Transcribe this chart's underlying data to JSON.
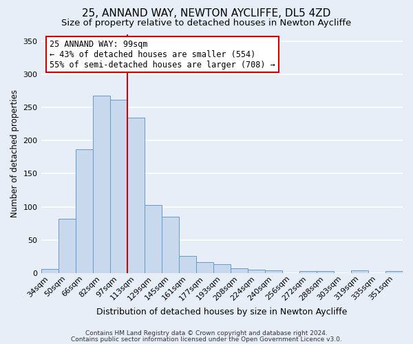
{
  "title": "25, ANNAND WAY, NEWTON AYCLIFFE, DL5 4ZD",
  "subtitle": "Size of property relative to detached houses in Newton Aycliffe",
  "xlabel": "Distribution of detached houses by size in Newton Aycliffe",
  "ylabel": "Number of detached properties",
  "bar_labels": [
    "34sqm",
    "50sqm",
    "66sqm",
    "82sqm",
    "97sqm",
    "113sqm",
    "129sqm",
    "145sqm",
    "161sqm",
    "177sqm",
    "193sqm",
    "208sqm",
    "224sqm",
    "240sqm",
    "256sqm",
    "272sqm",
    "288sqm",
    "303sqm",
    "319sqm",
    "335sqm",
    "351sqm"
  ],
  "bar_values": [
    6,
    82,
    187,
    268,
    261,
    234,
    103,
    85,
    26,
    16,
    13,
    7,
    5,
    4,
    0,
    3,
    3,
    0,
    4,
    0,
    3
  ],
  "bar_color": "#c9d9ed",
  "bar_edge_color": "#6699cc",
  "vline_color": "#cc0000",
  "annotation_title": "25 ANNAND WAY: 99sqm",
  "annotation_line1": "← 43% of detached houses are smaller (554)",
  "annotation_line2": "55% of semi-detached houses are larger (708) →",
  "annotation_box_facecolor": "white",
  "annotation_box_edgecolor": "#cc0000",
  "ylim": [
    0,
    360
  ],
  "yticks": [
    0,
    50,
    100,
    150,
    200,
    250,
    300,
    350
  ],
  "footer1": "Contains HM Land Registry data © Crown copyright and database right 2024.",
  "footer2": "Contains public sector information licensed under the Open Government Licence v3.0.",
  "bg_color": "#e8eef7",
  "plot_bg_color": "#e8eef7",
  "grid_color": "white",
  "title_fontsize": 11,
  "subtitle_fontsize": 9.5,
  "xlabel_fontsize": 9,
  "ylabel_fontsize": 8.5,
  "tick_fontsize": 8,
  "ann_fontsize": 8.5,
  "footer_fontsize": 6.5
}
